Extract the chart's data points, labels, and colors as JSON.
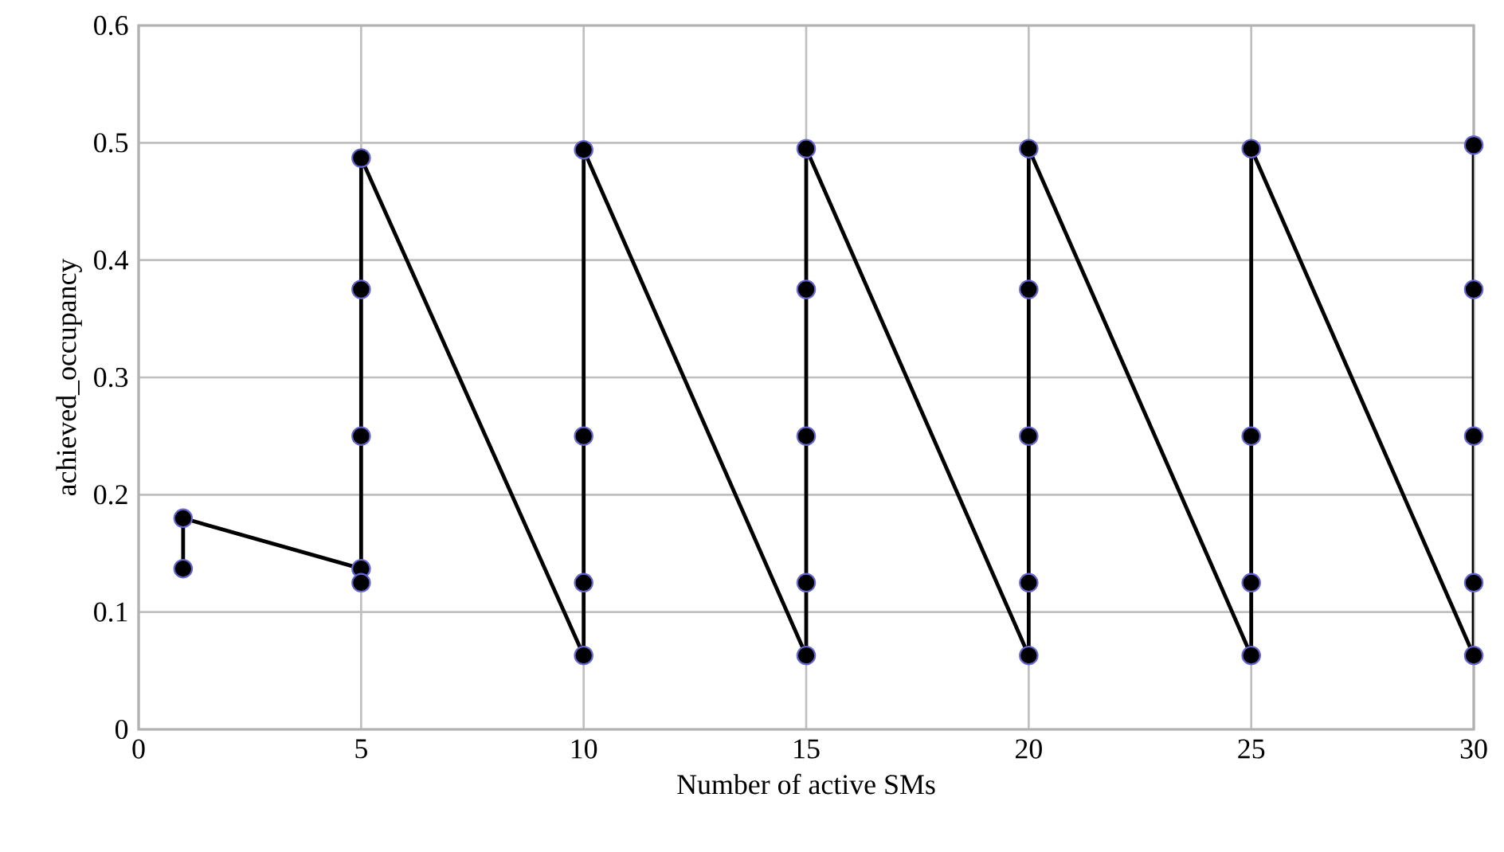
{
  "chart_data": {
    "type": "line",
    "xlabel": "Number of active SMs",
    "ylabel": "achieved_occupancy",
    "x": [
      1,
      1,
      5,
      5,
      5,
      5,
      5,
      10,
      10,
      10,
      10,
      15,
      15,
      15,
      15,
      15,
      20,
      20,
      20,
      20,
      20,
      25,
      25,
      25,
      25,
      30,
      30,
      30,
      30,
      30
    ],
    "series": [
      {
        "color": "#000000",
        "values": [
          0.137,
          0.18,
          0.137,
          0.125,
          0.25,
          0.375,
          0.487,
          0.063,
          0.125,
          0.25,
          0.494,
          0.063,
          0.125,
          0.25,
          0.375,
          0.495,
          0.063,
          0.125,
          0.25,
          0.375,
          0.495,
          0.063,
          0.125,
          0.25,
          0.495,
          0.063,
          0.125,
          0.25,
          0.375,
          0.498
        ]
      }
    ],
    "xlim": [
      0,
      30
    ],
    "ylim": [
      0,
      0.6
    ],
    "xticks": [
      0,
      5,
      10,
      15,
      20,
      25,
      30
    ],
    "yticks": [
      0,
      0.1,
      0.2,
      0.3,
      0.4,
      0.5,
      0.6
    ],
    "grid": true,
    "marker": "circle",
    "line_style": "solid"
  }
}
